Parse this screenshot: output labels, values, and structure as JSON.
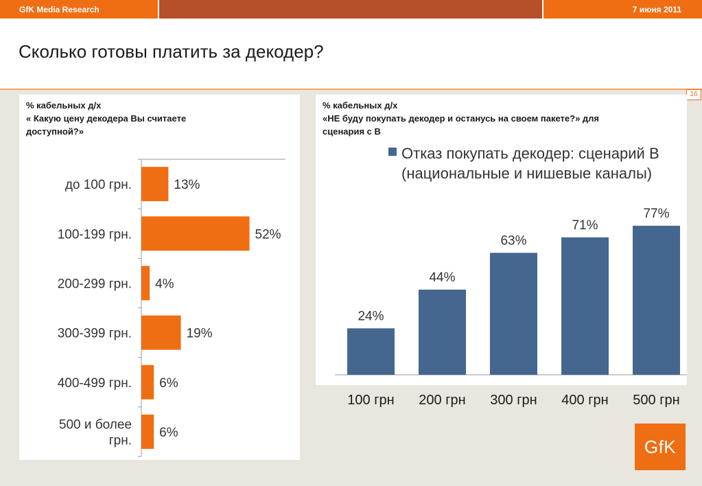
{
  "header": {
    "brand": "GfK Media Research",
    "date": "7 июня 2011"
  },
  "page": {
    "title": "Сколько готовы платить за декодер?",
    "number": "16",
    "logo": "GfK"
  },
  "left_panel": {
    "lines": [
      "% кабельных д/х",
      "« Какую цену декодера Вы считаете",
      "доступной?»"
    ]
  },
  "right_panel": {
    "lines": [
      "% кабельных д/х",
      "«НЕ буду покупать декодер и останусь на своем пакете?» для",
      "сценария с В"
    ]
  },
  "colors": {
    "orange": "#f06e13",
    "blue": "#45668f"
  },
  "chart_data": [
    {
      "type": "bar",
      "orientation": "horizontal",
      "categories": [
        [
          "до 100 грн."
        ],
        [
          "100-199 грн."
        ],
        [
          "200-299 грн."
        ],
        [
          "300-399 грн."
        ],
        [
          "400-499 грн."
        ],
        [
          "500 и более",
          "грн."
        ]
      ],
      "values": [
        13,
        52,
        4,
        19,
        6,
        6
      ],
      "value_labels": [
        "13%",
        "52%",
        "4%",
        "19%",
        "6%",
        "6%"
      ],
      "xlim": [
        0,
        100
      ],
      "color": "#f06e13"
    },
    {
      "type": "bar",
      "orientation": "vertical",
      "legend": [
        "Отказ покупать декодер: сценарий В",
        "(национальные и нишевые каналы)"
      ],
      "categories": [
        "100 грн",
        "200 грн",
        "300 грн",
        "400 грн",
        "500 грн"
      ],
      "values": [
        24,
        44,
        63,
        71,
        77
      ],
      "value_labels": [
        "24%",
        "44%",
        "63%",
        "71%",
        "77%"
      ],
      "ylim": [
        0,
        100
      ],
      "color": "#45668f"
    }
  ]
}
